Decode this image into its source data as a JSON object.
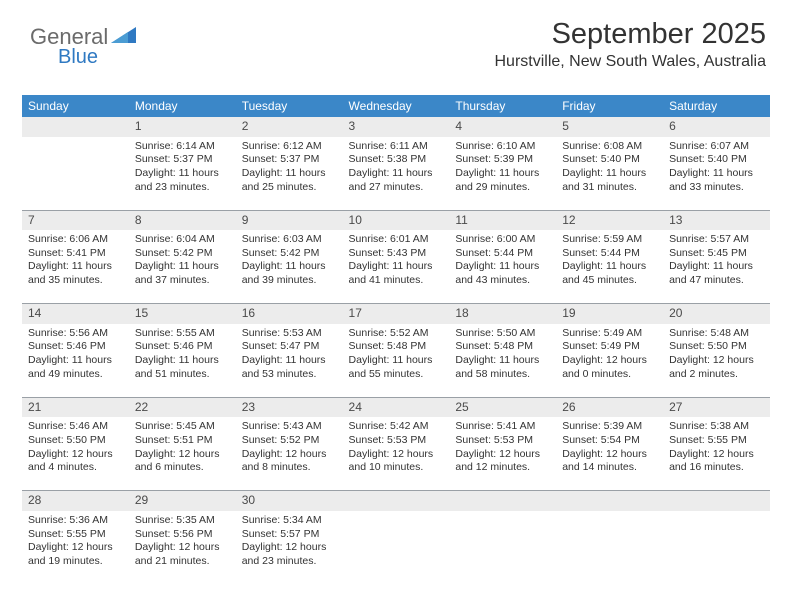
{
  "brand": {
    "part1": "General",
    "part2": "Blue"
  },
  "title": "September 2025",
  "subtitle": "Hurstville, New South Wales, Australia",
  "colors": {
    "header_bg": "#3b87c8",
    "header_text": "#ffffff",
    "daynum_bg": "#ececec",
    "rule": "#9aa0a6",
    "brand_grey": "#6b6b6b",
    "brand_blue": "#2f79c2"
  },
  "day_headers": [
    "Sunday",
    "Monday",
    "Tuesday",
    "Wednesday",
    "Thursday",
    "Friday",
    "Saturday"
  ],
  "weeks": [
    {
      "nums": [
        "",
        "1",
        "2",
        "3",
        "4",
        "5",
        "6"
      ],
      "cells": [
        null,
        {
          "sunrise": "Sunrise: 6:14 AM",
          "sunset": "Sunset: 5:37 PM",
          "daylight": "Daylight: 11 hours and 23 minutes."
        },
        {
          "sunrise": "Sunrise: 6:12 AM",
          "sunset": "Sunset: 5:37 PM",
          "daylight": "Daylight: 11 hours and 25 minutes."
        },
        {
          "sunrise": "Sunrise: 6:11 AM",
          "sunset": "Sunset: 5:38 PM",
          "daylight": "Daylight: 11 hours and 27 minutes."
        },
        {
          "sunrise": "Sunrise: 6:10 AM",
          "sunset": "Sunset: 5:39 PM",
          "daylight": "Daylight: 11 hours and 29 minutes."
        },
        {
          "sunrise": "Sunrise: 6:08 AM",
          "sunset": "Sunset: 5:40 PM",
          "daylight": "Daylight: 11 hours and 31 minutes."
        },
        {
          "sunrise": "Sunrise: 6:07 AM",
          "sunset": "Sunset: 5:40 PM",
          "daylight": "Daylight: 11 hours and 33 minutes."
        }
      ]
    },
    {
      "nums": [
        "7",
        "8",
        "9",
        "10",
        "11",
        "12",
        "13"
      ],
      "cells": [
        {
          "sunrise": "Sunrise: 6:06 AM",
          "sunset": "Sunset: 5:41 PM",
          "daylight": "Daylight: 11 hours and 35 minutes."
        },
        {
          "sunrise": "Sunrise: 6:04 AM",
          "sunset": "Sunset: 5:42 PM",
          "daylight": "Daylight: 11 hours and 37 minutes."
        },
        {
          "sunrise": "Sunrise: 6:03 AM",
          "sunset": "Sunset: 5:42 PM",
          "daylight": "Daylight: 11 hours and 39 minutes."
        },
        {
          "sunrise": "Sunrise: 6:01 AM",
          "sunset": "Sunset: 5:43 PM",
          "daylight": "Daylight: 11 hours and 41 minutes."
        },
        {
          "sunrise": "Sunrise: 6:00 AM",
          "sunset": "Sunset: 5:44 PM",
          "daylight": "Daylight: 11 hours and 43 minutes."
        },
        {
          "sunrise": "Sunrise: 5:59 AM",
          "sunset": "Sunset: 5:44 PM",
          "daylight": "Daylight: 11 hours and 45 minutes."
        },
        {
          "sunrise": "Sunrise: 5:57 AM",
          "sunset": "Sunset: 5:45 PM",
          "daylight": "Daylight: 11 hours and 47 minutes."
        }
      ]
    },
    {
      "nums": [
        "14",
        "15",
        "16",
        "17",
        "18",
        "19",
        "20"
      ],
      "cells": [
        {
          "sunrise": "Sunrise: 5:56 AM",
          "sunset": "Sunset: 5:46 PM",
          "daylight": "Daylight: 11 hours and 49 minutes."
        },
        {
          "sunrise": "Sunrise: 5:55 AM",
          "sunset": "Sunset: 5:46 PM",
          "daylight": "Daylight: 11 hours and 51 minutes."
        },
        {
          "sunrise": "Sunrise: 5:53 AM",
          "sunset": "Sunset: 5:47 PM",
          "daylight": "Daylight: 11 hours and 53 minutes."
        },
        {
          "sunrise": "Sunrise: 5:52 AM",
          "sunset": "Sunset: 5:48 PM",
          "daylight": "Daylight: 11 hours and 55 minutes."
        },
        {
          "sunrise": "Sunrise: 5:50 AM",
          "sunset": "Sunset: 5:48 PM",
          "daylight": "Daylight: 11 hours and 58 minutes."
        },
        {
          "sunrise": "Sunrise: 5:49 AM",
          "sunset": "Sunset: 5:49 PM",
          "daylight": "Daylight: 12 hours and 0 minutes."
        },
        {
          "sunrise": "Sunrise: 5:48 AM",
          "sunset": "Sunset: 5:50 PM",
          "daylight": "Daylight: 12 hours and 2 minutes."
        }
      ]
    },
    {
      "nums": [
        "21",
        "22",
        "23",
        "24",
        "25",
        "26",
        "27"
      ],
      "cells": [
        {
          "sunrise": "Sunrise: 5:46 AM",
          "sunset": "Sunset: 5:50 PM",
          "daylight": "Daylight: 12 hours and 4 minutes."
        },
        {
          "sunrise": "Sunrise: 5:45 AM",
          "sunset": "Sunset: 5:51 PM",
          "daylight": "Daylight: 12 hours and 6 minutes."
        },
        {
          "sunrise": "Sunrise: 5:43 AM",
          "sunset": "Sunset: 5:52 PM",
          "daylight": "Daylight: 12 hours and 8 minutes."
        },
        {
          "sunrise": "Sunrise: 5:42 AM",
          "sunset": "Sunset: 5:53 PM",
          "daylight": "Daylight: 12 hours and 10 minutes."
        },
        {
          "sunrise": "Sunrise: 5:41 AM",
          "sunset": "Sunset: 5:53 PM",
          "daylight": "Daylight: 12 hours and 12 minutes."
        },
        {
          "sunrise": "Sunrise: 5:39 AM",
          "sunset": "Sunset: 5:54 PM",
          "daylight": "Daylight: 12 hours and 14 minutes."
        },
        {
          "sunrise": "Sunrise: 5:38 AM",
          "sunset": "Sunset: 5:55 PM",
          "daylight": "Daylight: 12 hours and 16 minutes."
        }
      ]
    },
    {
      "nums": [
        "28",
        "29",
        "30",
        "",
        "",
        "",
        ""
      ],
      "cells": [
        {
          "sunrise": "Sunrise: 5:36 AM",
          "sunset": "Sunset: 5:55 PM",
          "daylight": "Daylight: 12 hours and 19 minutes."
        },
        {
          "sunrise": "Sunrise: 5:35 AM",
          "sunset": "Sunset: 5:56 PM",
          "daylight": "Daylight: 12 hours and 21 minutes."
        },
        {
          "sunrise": "Sunrise: 5:34 AM",
          "sunset": "Sunset: 5:57 PM",
          "daylight": "Daylight: 12 hours and 23 minutes."
        },
        null,
        null,
        null,
        null
      ]
    }
  ]
}
